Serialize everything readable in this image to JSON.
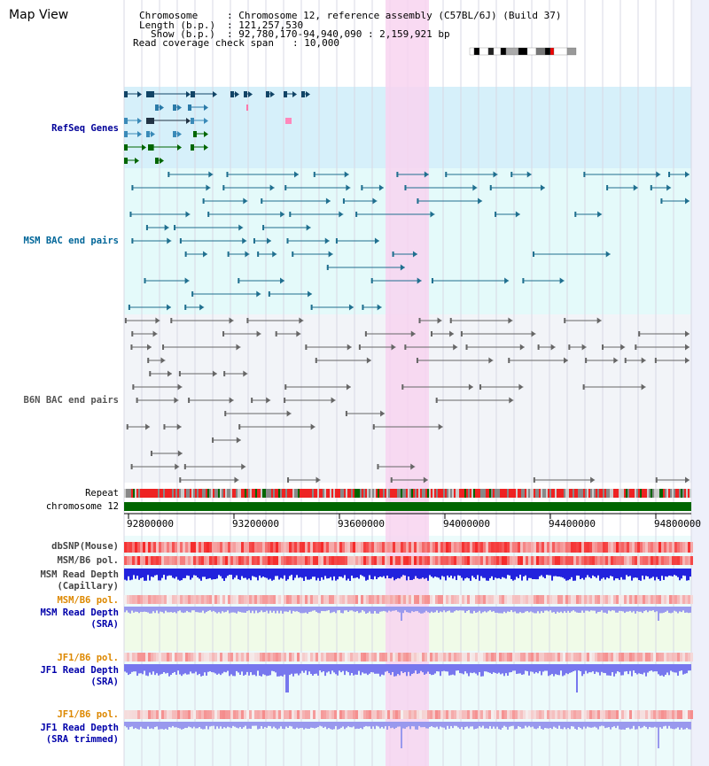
{
  "header": {
    "title": "Map View",
    "chromosome_key": "Chromosome",
    "chromosome_value": ": Chromosome 12, reference assembly (C57BL/6J) (Build 37)",
    "length_key": "Length (b.p.)",
    "length_value": ": 121,257,530",
    "show_key": "Show (b.p.)",
    "show_value": ": 92,780,170-94,940,090 : 2,159,921 bp",
    "coverage_key": "Read coverage check span",
    "coverage_value": ": 10,000"
  },
  "tracks": {
    "refseq": "RefSeq Genes",
    "msm_bac": "MSM BAC end pairs",
    "b6n_bac": "B6N BAC end pairs",
    "repeat": "Repeat",
    "chromosome": "chromosome 12",
    "dbsnp": "dbSNP(Mouse)",
    "msm_b6_pol_1": "MSM/B6 pol.",
    "msm_depth_cap_1": "MSM Read Depth",
    "msm_depth_cap_2": "(Capillary)",
    "msm_b6_pol_2": "MSM/B6 pol.",
    "msm_depth_sra_1": "MSM Read Depth",
    "msm_depth_sra_2": "(SRA)",
    "jf1_pol_1": "JF1/B6 pol.",
    "jf1_depth_sra_1": "JF1 Read Depth",
    "jf1_depth_sra_2": "(SRA)",
    "jf1_pol_2": "JF1/B6 pol.",
    "jf1_depth_trim_1": "JF1 Read Depth",
    "jf1_depth_trim_2": "(SRA trimmed)"
  },
  "axis": {
    "ticks": [
      "92800000",
      "93200000",
      "93600000",
      "94000000",
      "94400000",
      "94800000"
    ]
  },
  "colors": {
    "refseq_label": "#000099",
    "msm_label": "#006699",
    "b6n_label": "#555555",
    "orange_label": "#dd8800",
    "blue_label": "#0000aa",
    "highlight": "#f8d4f0",
    "chromosome_bar": "#006600"
  }
}
